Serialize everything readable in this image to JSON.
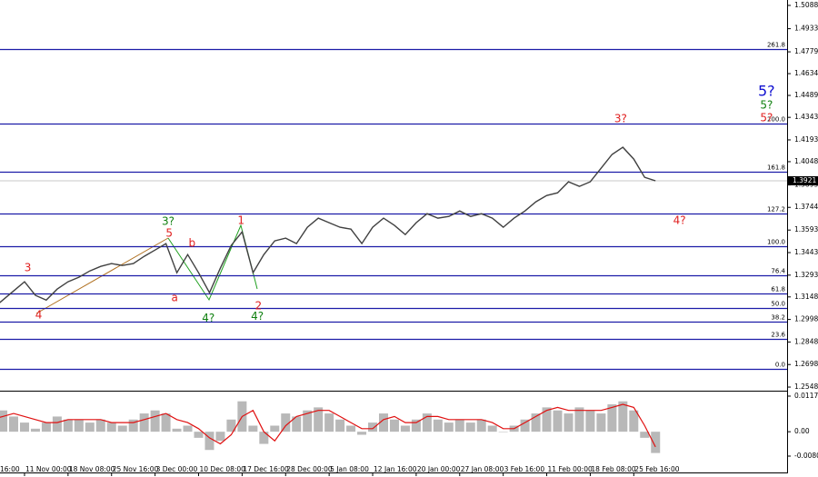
{
  "chart_data": {
    "type": "line",
    "categories": [
      "16:00",
      null,
      null,
      null,
      "11 Nov 00:00",
      null,
      null,
      null,
      "18 Nov 08:00",
      null,
      null,
      null,
      "25 Nov 16:00",
      null,
      null,
      null,
      "3 Dec 00:00",
      null,
      null,
      null,
      "10 Dec 08:00",
      null,
      null,
      null,
      "17 Dec 16:00",
      null,
      null,
      null,
      "28 Dec 00:00",
      null,
      null,
      null,
      "5 Jan 08:00",
      null,
      null,
      null,
      "12 Jan 16:00",
      null,
      null,
      null,
      "20 Jan 00:00",
      null,
      null,
      null,
      "27 Jan 08:00",
      null,
      null,
      null,
      "3 Feb 16:00",
      null,
      null,
      null,
      "11 Feb 00:00",
      null,
      null,
      null,
      "18 Feb 08:00",
      null,
      null,
      null,
      "25 Feb 16:00",
      null,
      null
    ],
    "series": [
      {
        "color": "#404040",
        "values": [
          1.3037,
          1.3067,
          1.3127,
          1.3188,
          1.3249,
          1.3158,
          1.3127,
          1.32,
          1.3249,
          1.3279,
          1.3321,
          1.3351,
          1.337,
          1.3357,
          1.337,
          1.3418,
          1.346,
          1.3503,
          1.3309,
          1.343,
          1.3309,
          1.3176,
          1.3339,
          1.3491,
          1.3581,
          1.3309,
          1.343,
          1.3521,
          1.3539,
          1.3503,
          1.3612,
          1.3672,
          1.3642,
          1.3612,
          1.3599,
          1.3503,
          1.3612,
          1.3672,
          1.3624,
          1.3563,
          1.3642,
          1.3702,
          1.3672,
          1.3684,
          1.372,
          1.3684,
          1.3702,
          1.3672,
          1.3612,
          1.3672,
          1.372,
          1.3781,
          1.3823,
          1.3841,
          1.3914,
          1.3884,
          1.3914,
          1.4005,
          1.4096,
          1.4144,
          1.4065,
          1.3944,
          1.3921
        ]
      }
    ],
    "ylim": [
      1.2524,
      1.5124
    ],
    "yticks": [
      1.5088,
      1.4933,
      1.4779,
      1.4634,
      1.4489,
      1.4343,
      1.4193,
      1.4048,
      1.3893,
      1.3744,
      1.3593,
      1.3443,
      1.3293,
      1.3148,
      1.2998,
      1.2848,
      1.2698,
      1.2548
    ],
    "last_price": 1.3921,
    "levels_color": "#1c1ca8",
    "levels": [
      {
        "label": "261.8",
        "price": 1.4798
      },
      {
        "label": "200.0",
        "price": 1.4302
      },
      {
        "label": "161.8",
        "price": 1.3981
      },
      {
        "label": "127.2",
        "price": 1.3703
      },
      {
        "label": "100.0",
        "price": 1.3485
      },
      {
        "label": "76.4",
        "price": 1.3291
      },
      {
        "label": "61.8",
        "price": 1.317
      },
      {
        "label": "50.0",
        "price": 1.3073
      },
      {
        "label": "38.2",
        "price": 1.2983
      },
      {
        "label": "23.6",
        "price": 1.2868
      },
      {
        "label": "0.0",
        "price": 1.2668
      }
    ],
    "annotations": [
      {
        "text": "3",
        "color": "#e02020",
        "index": 4.3,
        "price": 1.3339
      },
      {
        "text": "4",
        "color": "#e02020",
        "index": 5.3,
        "price": 1.3025
      },
      {
        "text": "3?",
        "color": "#108010",
        "index": 17.2,
        "price": 1.3648
      },
      {
        "text": "5",
        "color": "#e02020",
        "index": 17.3,
        "price": 1.3569
      },
      {
        "text": "b",
        "color": "#e02020",
        "index": 19.4,
        "price": 1.3503
      },
      {
        "text": "a",
        "color": "#e02020",
        "index": 17.8,
        "price": 1.314
      },
      {
        "text": "1",
        "color": "#e02020",
        "index": 23.9,
        "price": 1.3654
      },
      {
        "text": "2",
        "color": "#e02020",
        "index": 25.5,
        "price": 1.3085
      },
      {
        "text": "4?",
        "color": "#108010",
        "index": 20.9,
        "price": 1.3006
      },
      {
        "text": "4?",
        "color": "#108010",
        "index": 25.4,
        "price": 1.3018
      },
      {
        "text": "3?",
        "color": "#e02020",
        "index": 58.8,
        "price": 1.4331
      },
      {
        "text": "4?",
        "color": "#e02020",
        "index": 64.2,
        "price": 1.3654
      },
      {
        "text": "5?",
        "color": "#e02020",
        "index": 72.2,
        "price": 1.4338
      },
      {
        "text": "5?",
        "color": "#108010",
        "index": 72.2,
        "price": 1.4422
      },
      {
        "text": "5?",
        "color": "#1010d0",
        "index": 72.2,
        "price": 1.4513
      }
    ],
    "oscillator": {
      "ylim": [
        -0.0134,
        0.0129
      ],
      "yticks": [
        0.01171,
        {
          "value": 0,
          "label": "0.00"
        },
        -0.00802
      ],
      "histogram": {
        "color": "#b8b8b8",
        "values": [
          0.004,
          0.006,
          0.007,
          0.005,
          0.003,
          0.001,
          0.003,
          0.005,
          0.004,
          0.004,
          0.003,
          0.004,
          0.003,
          0.002,
          0.004,
          0.006,
          0.007,
          0.006,
          0.001,
          0.002,
          -0.002,
          -0.006,
          -0.003,
          0.004,
          0.01,
          0.002,
          -0.004,
          0.002,
          0.006,
          0.005,
          0.007,
          0.008,
          0.006,
          0.004,
          0.002,
          -0.001,
          0.003,
          0.006,
          0.004,
          0.002,
          0.004,
          0.006,
          0.004,
          0.003,
          0.004,
          0.003,
          0.004,
          0.002,
          0.0,
          0.002,
          0.004,
          0.006,
          0.008,
          0.007,
          0.006,
          0.008,
          0.007,
          0.006,
          0.009,
          0.01,
          0.007,
          -0.002,
          -0.007
        ]
      },
      "signal": {
        "color": "#e01010",
        "values": [
          0.003,
          0.004,
          0.005,
          0.006,
          0.005,
          0.004,
          0.003,
          0.003,
          0.004,
          0.004,
          0.004,
          0.004,
          0.003,
          0.003,
          0.003,
          0.004,
          0.005,
          0.006,
          0.004,
          0.003,
          0.001,
          -0.002,
          -0.004,
          -0.001,
          0.005,
          0.007,
          0.0,
          -0.003,
          0.002,
          0.005,
          0.006,
          0.007,
          0.007,
          0.005,
          0.003,
          0.001,
          0.001,
          0.004,
          0.005,
          0.003,
          0.003,
          0.005,
          0.005,
          0.004,
          0.004,
          0.004,
          0.004,
          0.003,
          0.001,
          0.001,
          0.003,
          0.005,
          0.007,
          0.008,
          0.007,
          0.007,
          0.007,
          0.007,
          0.008,
          0.009,
          0.008,
          0.002,
          -0.005
        ]
      }
    }
  }
}
